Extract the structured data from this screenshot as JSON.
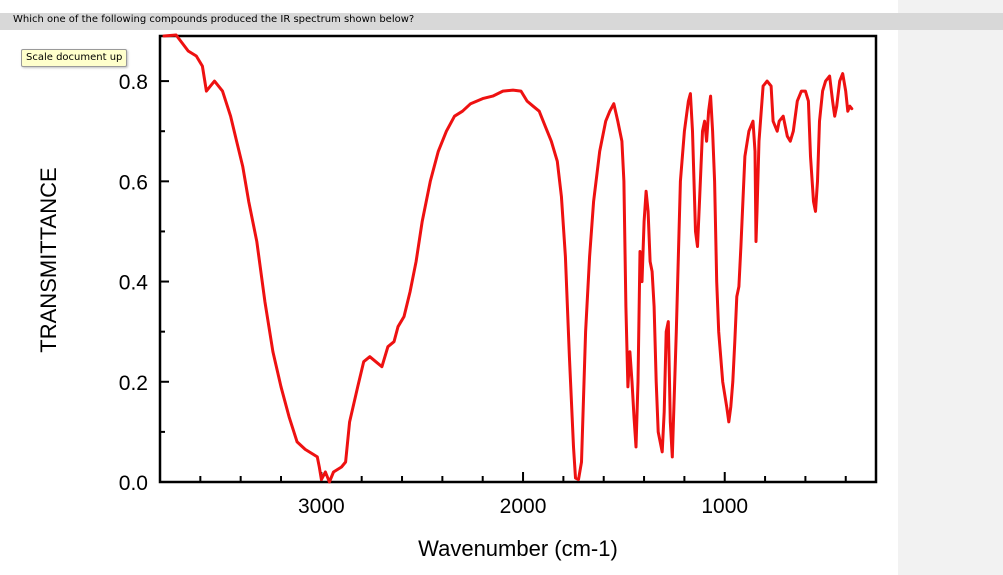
{
  "question": "Which one of the following compounds produced the IR spectrum shown below?",
  "scale_button": "Scale document up",
  "chart_data": {
    "type": "line",
    "title": "",
    "xlabel": "Wavenumber (cm-1)",
    "ylabel": "TRANSMITTANCE",
    "xlim": [
      3800,
      250
    ],
    "ylim": [
      0,
      0.89
    ],
    "x_reversed": true,
    "grid": false,
    "x_ticks": [
      {
        "value": 3000,
        "label": "3000"
      },
      {
        "value": 2000,
        "label": "2000"
      },
      {
        "value": 1000,
        "label": "1000"
      }
    ],
    "y_ticks": [
      {
        "value": 0.0,
        "label": "0.0"
      },
      {
        "value": 0.2,
        "label": "0.2"
      },
      {
        "value": 0.4,
        "label": "0.4"
      },
      {
        "value": 0.6,
        "label": "0.6"
      },
      {
        "value": 0.8,
        "label": "0.8"
      }
    ],
    "series": [
      {
        "name": "IR spectrum",
        "color": "#ee1111",
        "points": [
          [
            3780,
            0.89
          ],
          [
            3720,
            0.892
          ],
          [
            3660,
            0.86
          ],
          [
            3620,
            0.85
          ],
          [
            3590,
            0.83
          ],
          [
            3570,
            0.78
          ],
          [
            3550,
            0.79
          ],
          [
            3530,
            0.8
          ],
          [
            3490,
            0.78
          ],
          [
            3450,
            0.73
          ],
          [
            3420,
            0.68
          ],
          [
            3390,
            0.63
          ],
          [
            3360,
            0.56
          ],
          [
            3320,
            0.48
          ],
          [
            3280,
            0.36
          ],
          [
            3240,
            0.26
          ],
          [
            3200,
            0.19
          ],
          [
            3160,
            0.13
          ],
          [
            3120,
            0.08
          ],
          [
            3080,
            0.065
          ],
          [
            3040,
            0.055
          ],
          [
            3020,
            0.05
          ],
          [
            3010,
            0.03
          ],
          [
            3000,
            0.005
          ],
          [
            2980,
            0.02
          ],
          [
            2960,
            0.0
          ],
          [
            2940,
            0.02
          ],
          [
            2900,
            0.03
          ],
          [
            2880,
            0.04
          ],
          [
            2860,
            0.12
          ],
          [
            2820,
            0.19
          ],
          [
            2790,
            0.24
          ],
          [
            2760,
            0.25
          ],
          [
            2730,
            0.24
          ],
          [
            2700,
            0.23
          ],
          [
            2670,
            0.27
          ],
          [
            2640,
            0.28
          ],
          [
            2620,
            0.31
          ],
          [
            2590,
            0.33
          ],
          [
            2560,
            0.38
          ],
          [
            2530,
            0.44
          ],
          [
            2500,
            0.52
          ],
          [
            2460,
            0.6
          ],
          [
            2420,
            0.66
          ],
          [
            2380,
            0.7
          ],
          [
            2340,
            0.73
          ],
          [
            2300,
            0.74
          ],
          [
            2260,
            0.755
          ],
          [
            2200,
            0.765
          ],
          [
            2150,
            0.77
          ],
          [
            2100,
            0.78
          ],
          [
            2050,
            0.782
          ],
          [
            2010,
            0.78
          ],
          [
            1980,
            0.76
          ],
          [
            1950,
            0.75
          ],
          [
            1920,
            0.74
          ],
          [
            1890,
            0.71
          ],
          [
            1860,
            0.68
          ],
          [
            1830,
            0.64
          ],
          [
            1810,
            0.57
          ],
          [
            1790,
            0.45
          ],
          [
            1770,
            0.25
          ],
          [
            1750,
            0.07
          ],
          [
            1740,
            0.008
          ],
          [
            1725,
            0.005
          ],
          [
            1710,
            0.04
          ],
          [
            1690,
            0.3
          ],
          [
            1670,
            0.45
          ],
          [
            1650,
            0.56
          ],
          [
            1620,
            0.66
          ],
          [
            1590,
            0.72
          ],
          [
            1570,
            0.74
          ],
          [
            1550,
            0.755
          ],
          [
            1530,
            0.72
          ],
          [
            1510,
            0.68
          ],
          [
            1500,
            0.6
          ],
          [
            1490,
            0.35
          ],
          [
            1480,
            0.19
          ],
          [
            1470,
            0.26
          ],
          [
            1460,
            0.2
          ],
          [
            1450,
            0.13
          ],
          [
            1440,
            0.07
          ],
          [
            1430,
            0.2
          ],
          [
            1420,
            0.46
          ],
          [
            1410,
            0.4
          ],
          [
            1400,
            0.52
          ],
          [
            1390,
            0.58
          ],
          [
            1380,
            0.54
          ],
          [
            1370,
            0.44
          ],
          [
            1360,
            0.42
          ],
          [
            1350,
            0.35
          ],
          [
            1340,
            0.2
          ],
          [
            1330,
            0.1
          ],
          [
            1310,
            0.06
          ],
          [
            1300,
            0.14
          ],
          [
            1290,
            0.3
          ],
          [
            1280,
            0.32
          ],
          [
            1270,
            0.12
          ],
          [
            1260,
            0.05
          ],
          [
            1240,
            0.3
          ],
          [
            1220,
            0.6
          ],
          [
            1200,
            0.7
          ],
          [
            1180,
            0.76
          ],
          [
            1170,
            0.775
          ],
          [
            1160,
            0.7
          ],
          [
            1145,
            0.5
          ],
          [
            1135,
            0.47
          ],
          [
            1125,
            0.56
          ],
          [
            1110,
            0.7
          ],
          [
            1100,
            0.72
          ],
          [
            1090,
            0.68
          ],
          [
            1080,
            0.74
          ],
          [
            1070,
            0.77
          ],
          [
            1060,
            0.7
          ],
          [
            1050,
            0.6
          ],
          [
            1040,
            0.4
          ],
          [
            1030,
            0.3
          ],
          [
            1010,
            0.2
          ],
          [
            990,
            0.15
          ],
          [
            980,
            0.12
          ],
          [
            970,
            0.15
          ],
          [
            960,
            0.2
          ],
          [
            950,
            0.28
          ],
          [
            940,
            0.37
          ],
          [
            930,
            0.39
          ],
          [
            920,
            0.47
          ],
          [
            900,
            0.65
          ],
          [
            880,
            0.7
          ],
          [
            860,
            0.72
          ],
          [
            850,
            0.66
          ],
          [
            845,
            0.48
          ],
          [
            840,
            0.54
          ],
          [
            830,
            0.68
          ],
          [
            810,
            0.79
          ],
          [
            790,
            0.8
          ],
          [
            770,
            0.79
          ],
          [
            760,
            0.72
          ],
          [
            740,
            0.7
          ],
          [
            730,
            0.72
          ],
          [
            710,
            0.73
          ],
          [
            690,
            0.69
          ],
          [
            675,
            0.68
          ],
          [
            660,
            0.7
          ],
          [
            640,
            0.76
          ],
          [
            620,
            0.78
          ],
          [
            600,
            0.78
          ],
          [
            585,
            0.76
          ],
          [
            575,
            0.65
          ],
          [
            560,
            0.56
          ],
          [
            550,
            0.54
          ],
          [
            540,
            0.6
          ],
          [
            530,
            0.72
          ],
          [
            515,
            0.78
          ],
          [
            500,
            0.8
          ],
          [
            480,
            0.81
          ],
          [
            465,
            0.76
          ],
          [
            455,
            0.73
          ],
          [
            445,
            0.75
          ],
          [
            430,
            0.8
          ],
          [
            415,
            0.815
          ],
          [
            400,
            0.78
          ],
          [
            390,
            0.74
          ],
          [
            380,
            0.75
          ],
          [
            370,
            0.745
          ]
        ]
      }
    ]
  }
}
